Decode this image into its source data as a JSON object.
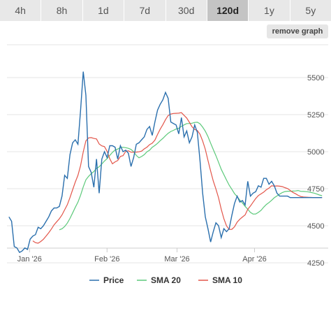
{
  "tabs": [
    {
      "label": "4h",
      "active": false
    },
    {
      "label": "8h",
      "active": false
    },
    {
      "label": "1d",
      "active": false
    },
    {
      "label": "7d",
      "active": false
    },
    {
      "label": "30d",
      "active": false
    },
    {
      "label": "120d",
      "active": true
    },
    {
      "label": "1y",
      "active": false
    },
    {
      "label": "5y",
      "active": false
    }
  ],
  "remove_graph_label": "remove graph",
  "chart_data": {
    "type": "line",
    "x_tick_labels": [
      "Jan '26",
      "Feb '26",
      "Mar '26",
      "Apr '26"
    ],
    "y_ticks": [
      4250,
      4500,
      4750,
      5000,
      5250,
      5500
    ],
    "ylim": [
      4250,
      5550
    ],
    "x_range_days": [
      0,
      115
    ],
    "x_tick_days": [
      0,
      31,
      59,
      90
    ],
    "grid": "horizontal",
    "legend_position": "bottom-center",
    "series": [
      {
        "name": "Price",
        "color": "#2a6fad",
        "x": [
          -4,
          -3,
          -2,
          -1,
          0,
          1,
          2,
          3,
          4,
          5,
          6,
          7,
          8,
          9,
          10,
          11,
          12,
          13,
          14,
          15,
          16,
          17,
          18,
          19,
          20,
          21,
          22,
          23,
          24,
          25,
          26,
          27,
          28,
          29,
          30,
          31,
          32,
          33,
          34,
          35,
          36,
          37,
          38,
          39,
          40,
          41,
          42,
          43,
          44,
          45,
          46,
          47,
          48,
          49,
          50,
          51,
          52,
          53,
          54,
          55,
          56,
          57,
          58,
          59,
          60,
          61,
          62,
          63,
          64,
          65,
          66,
          67,
          68,
          69,
          70,
          71,
          72,
          73,
          74,
          75,
          76,
          77,
          78,
          79,
          80,
          81,
          82,
          83,
          84,
          85,
          86,
          87,
          88,
          89,
          90,
          91,
          92,
          93,
          94,
          95,
          96,
          97,
          98,
          99,
          100,
          101,
          102,
          103,
          104,
          105,
          106,
          107,
          108,
          109,
          110,
          111,
          112,
          113,
          114,
          115
        ],
        "values": [
          4560,
          4530,
          4360,
          4350,
          4320,
          4330,
          4350,
          4340,
          4410,
          4430,
          4440,
          4490,
          4480,
          4500,
          4530,
          4560,
          4600,
          4620,
          4620,
          4630,
          4700,
          4840,
          4820,
          4980,
          5060,
          5080,
          5050,
          5280,
          5540,
          5380,
          4900,
          4860,
          4760,
          4950,
          4720,
          4950,
          5000,
          4960,
          5040,
          5040,
          5030,
          4950,
          5040,
          5000,
          5010,
          4990,
          4900,
          4960,
          5050,
          5060,
          5080,
          5100,
          5150,
          5170,
          5110,
          5200,
          5280,
          5320,
          5350,
          5400,
          5360,
          5200,
          5190,
          5180,
          5120,
          5230,
          5100,
          5140,
          5060,
          5100,
          5180,
          5130,
          4940,
          4720,
          4560,
          4480,
          4390,
          4460,
          4520,
          4500,
          4420,
          4480,
          4460,
          4480,
          4570,
          4650,
          4700,
          4660,
          4670,
          4640,
          4800,
          4700,
          4720,
          4730,
          4770,
          4760,
          4820,
          4820,
          4780,
          4800,
          4770,
          4720,
          4700,
          4700,
          4700,
          4700,
          4690,
          4690,
          4690,
          4690,
          4690,
          4690,
          4690,
          4690,
          4690,
          4690,
          4690,
          4690,
          4690,
          4690
        ],
        "values_note": ""
      }
    ]
  }
}
